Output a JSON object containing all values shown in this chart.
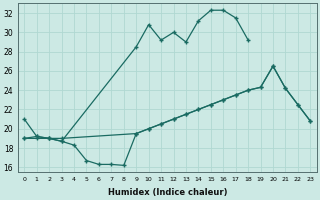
{
  "xlabel": "Humidex (Indice chaleur)",
  "bg_color": "#cce9e4",
  "grid_color": "#b0d8d2",
  "line_color": "#1a6b62",
  "xlim": [
    -0.5,
    23.5
  ],
  "ylim": [
    15.5,
    33.0
  ],
  "yticks": [
    16,
    18,
    20,
    22,
    24,
    26,
    28,
    30,
    32
  ],
  "xticks": [
    0,
    1,
    2,
    3,
    4,
    5,
    6,
    7,
    8,
    9,
    10,
    11,
    12,
    13,
    14,
    15,
    16,
    17,
    18,
    19,
    20,
    21,
    22,
    23
  ],
  "curve1_x": [
    0,
    1,
    2,
    3,
    9,
    10,
    11,
    12,
    13,
    14,
    15,
    16,
    17,
    18
  ],
  "curve1_y": [
    21.0,
    19.2,
    19.0,
    18.7,
    28.5,
    30.8,
    29.2,
    30.0,
    29.0,
    31.2,
    32.3,
    32.3,
    31.5,
    29.2
  ],
  "curve2_x": [
    0,
    1,
    2,
    3,
    9,
    10,
    11,
    12,
    13,
    14,
    15,
    16,
    17,
    18,
    19,
    20,
    21,
    22,
    23
  ],
  "curve2_y": [
    19.0,
    19.0,
    19.0,
    19.0,
    19.5,
    20.0,
    20.5,
    21.0,
    21.5,
    22.0,
    22.5,
    23.0,
    23.5,
    24.0,
    24.3,
    26.5,
    24.2,
    22.5,
    20.8
  ],
  "curve3_x": [
    0,
    1,
    2,
    3,
    4,
    5,
    6,
    7,
    8,
    9,
    10,
    11,
    12,
    13,
    14,
    15,
    16,
    17,
    18,
    19,
    20,
    21,
    22,
    23
  ],
  "curve3_y": [
    19.0,
    19.2,
    19.0,
    18.7,
    18.3,
    16.7,
    16.3,
    16.3,
    16.2,
    19.5,
    20.0,
    20.5,
    21.0,
    21.5,
    22.0,
    22.5,
    23.0,
    23.5,
    24.0,
    24.3,
    26.5,
    24.2,
    22.5,
    20.8
  ]
}
